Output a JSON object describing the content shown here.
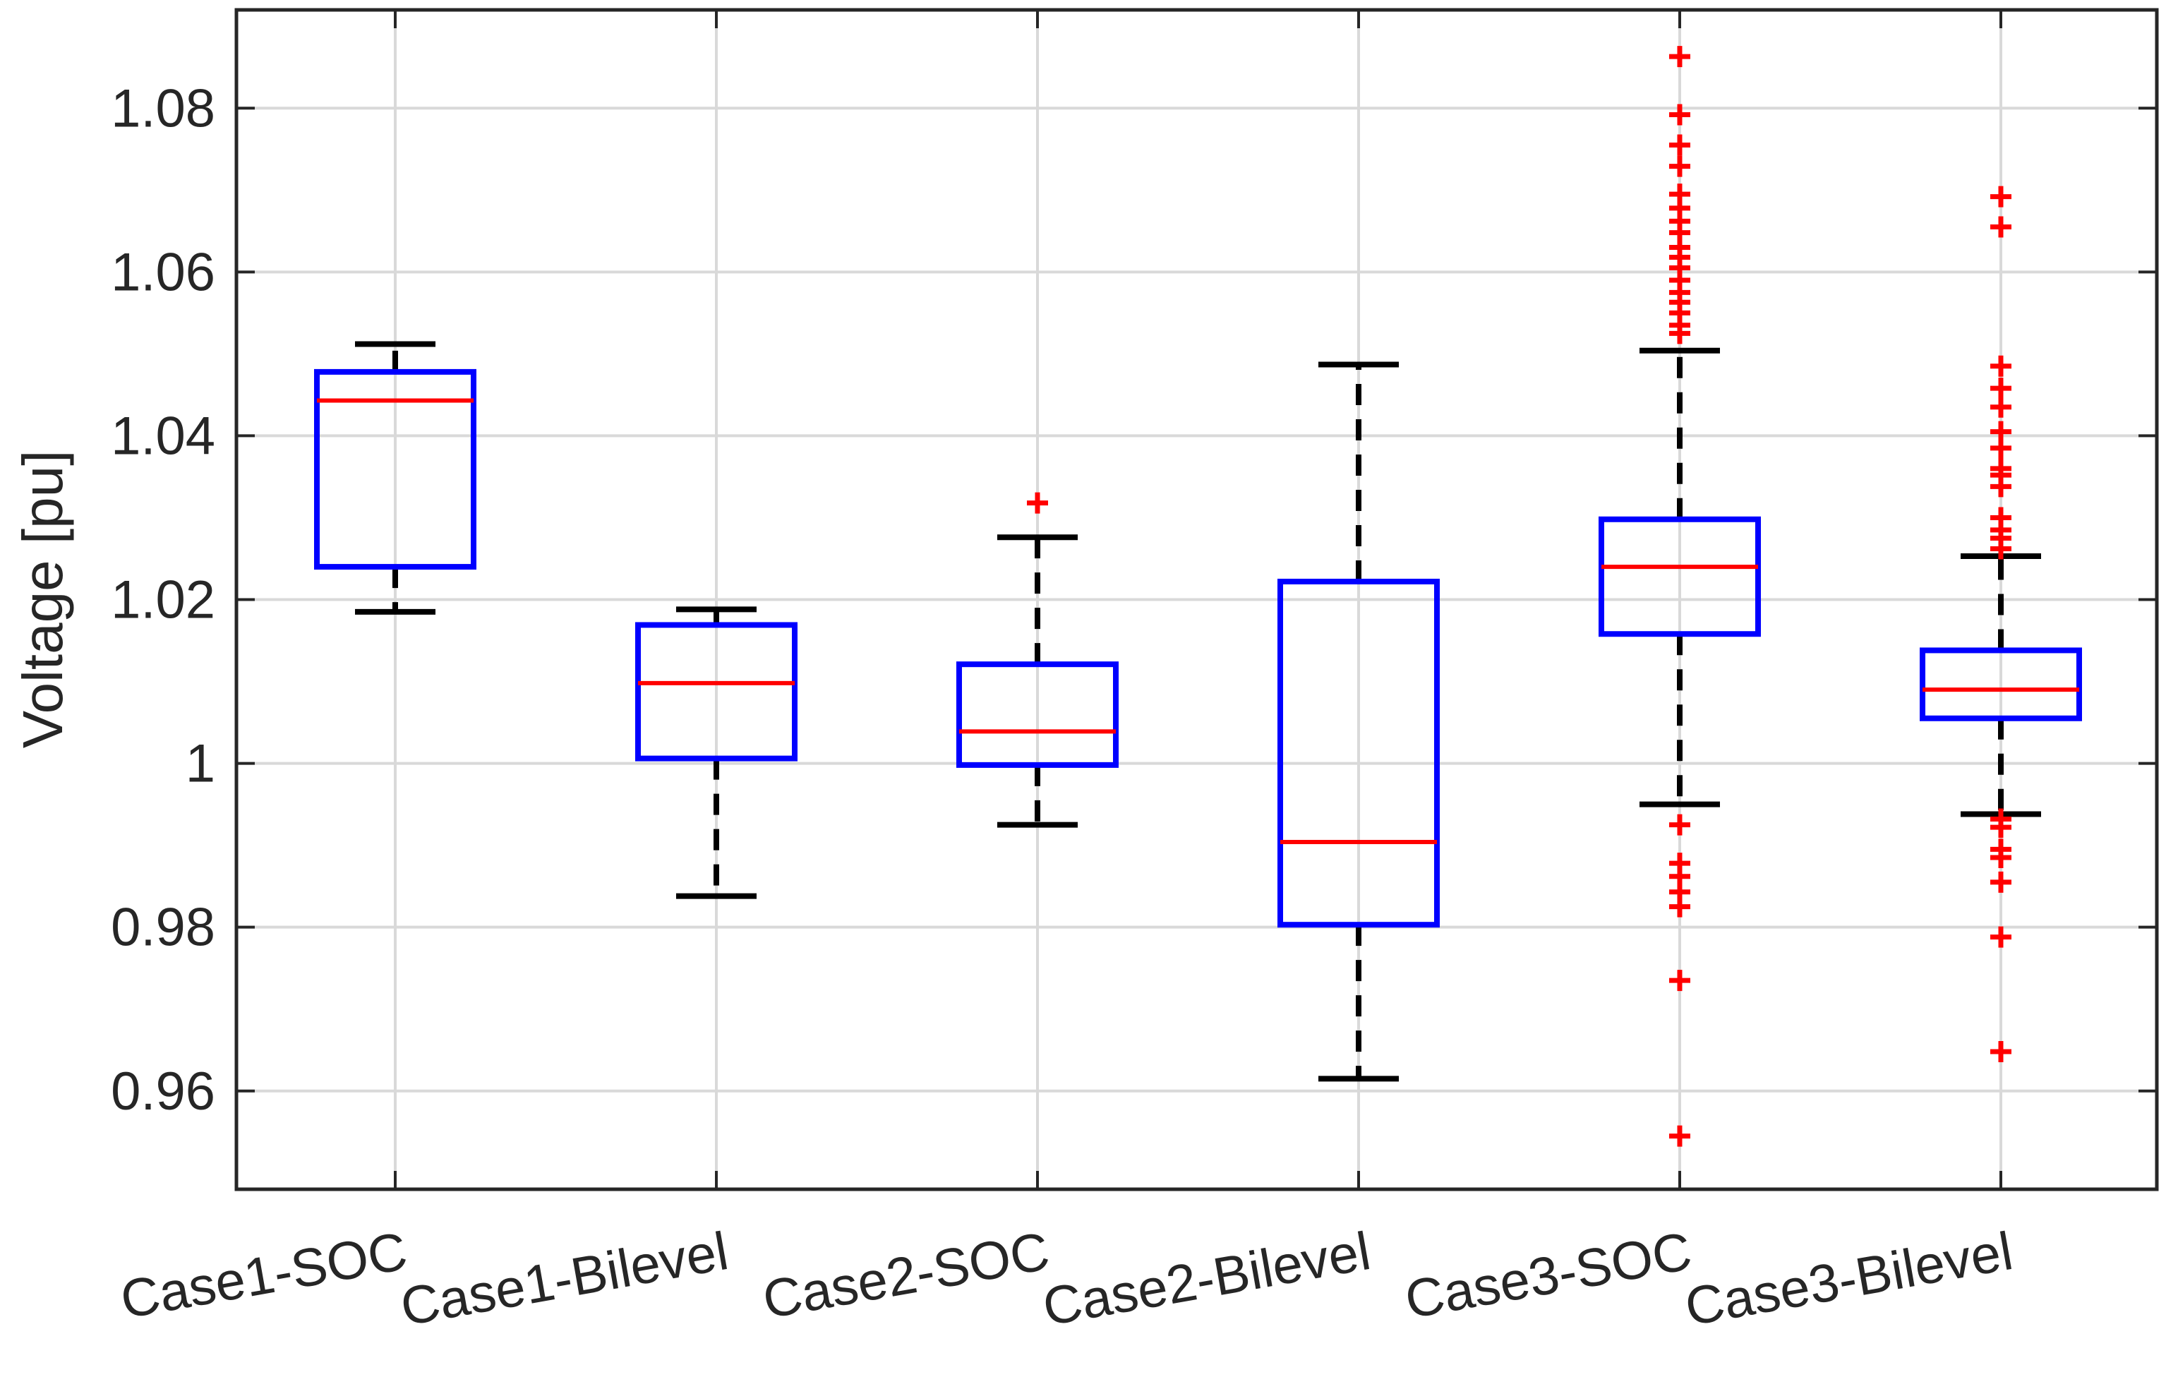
{
  "chart_data": {
    "type": "boxplot",
    "title": "",
    "xlabel": "",
    "ylabel": "Voltage [pu]",
    "ylim": [
      0.948,
      1.092
    ],
    "yticks": [
      0.96,
      0.98,
      1,
      1.02,
      1.04,
      1.06,
      1.08
    ],
    "ytick_labels": [
      "0.96",
      "0.98",
      "1",
      "1.02",
      "1.04",
      "1.06",
      "1.08"
    ],
    "grid": true,
    "colors": {
      "box": "#0000ff",
      "median": "#ff0000",
      "whisker": "#000000",
      "outlier": "#ff0000",
      "grid": "#d9d9d9",
      "axis": "#262626"
    },
    "categories": [
      "Case1-SOC",
      "Case1-Bilevel",
      "Case2-SOC",
      "Case2-Bilevel",
      "Case3-SOC",
      "Case3-Bilevel"
    ],
    "boxes": [
      {
        "name": "Case1-SOC",
        "whisker_low": 1.0185,
        "q1": 1.024,
        "median": 1.0443,
        "q3": 1.0478,
        "whisker_high": 1.0512,
        "outliers": []
      },
      {
        "name": "Case1-Bilevel",
        "whisker_low": 0.9838,
        "q1": 1.0006,
        "median": 1.0098,
        "q3": 1.0169,
        "whisker_high": 1.0188,
        "outliers": []
      },
      {
        "name": "Case2-SOC",
        "whisker_low": 0.9925,
        "q1": 0.9998,
        "median": 1.0039,
        "q3": 1.0121,
        "whisker_high": 1.0276,
        "outliers": [
          1.0318
        ]
      },
      {
        "name": "Case2-Bilevel",
        "whisker_low": 0.9615,
        "q1": 0.9803,
        "median": 0.9904,
        "q3": 1.0222,
        "whisker_high": 1.0487,
        "outliers": []
      },
      {
        "name": "Case3-SOC",
        "whisker_low": 0.995,
        "q1": 1.0158,
        "median": 1.024,
        "q3": 1.0298,
        "whisker_high": 1.0504,
        "outliers": [
          1.0863,
          1.0792,
          1.0755,
          1.0729,
          1.0695,
          1.0678,
          1.0662,
          1.0648,
          1.063,
          1.0618,
          1.0605,
          1.059,
          1.0575,
          1.0563,
          1.055,
          1.0535,
          1.0525,
          0.9925,
          0.9878,
          0.9862,
          0.9843,
          0.9825,
          0.9735,
          0.9545
        ]
      },
      {
        "name": "Case3-Bilevel",
        "whisker_low": 0.9938,
        "q1": 1.0055,
        "median": 1.009,
        "q3": 1.0138,
        "whisker_high": 1.0253,
        "outliers": [
          1.0692,
          1.0655,
          1.0485,
          1.0458,
          1.0435,
          1.0405,
          1.0385,
          1.036,
          1.0352,
          1.0338,
          1.03,
          1.0285,
          1.0275,
          1.0262,
          0.9932,
          0.9922,
          0.9895,
          0.9885,
          0.9855,
          0.9788,
          0.9648
        ]
      }
    ]
  }
}
